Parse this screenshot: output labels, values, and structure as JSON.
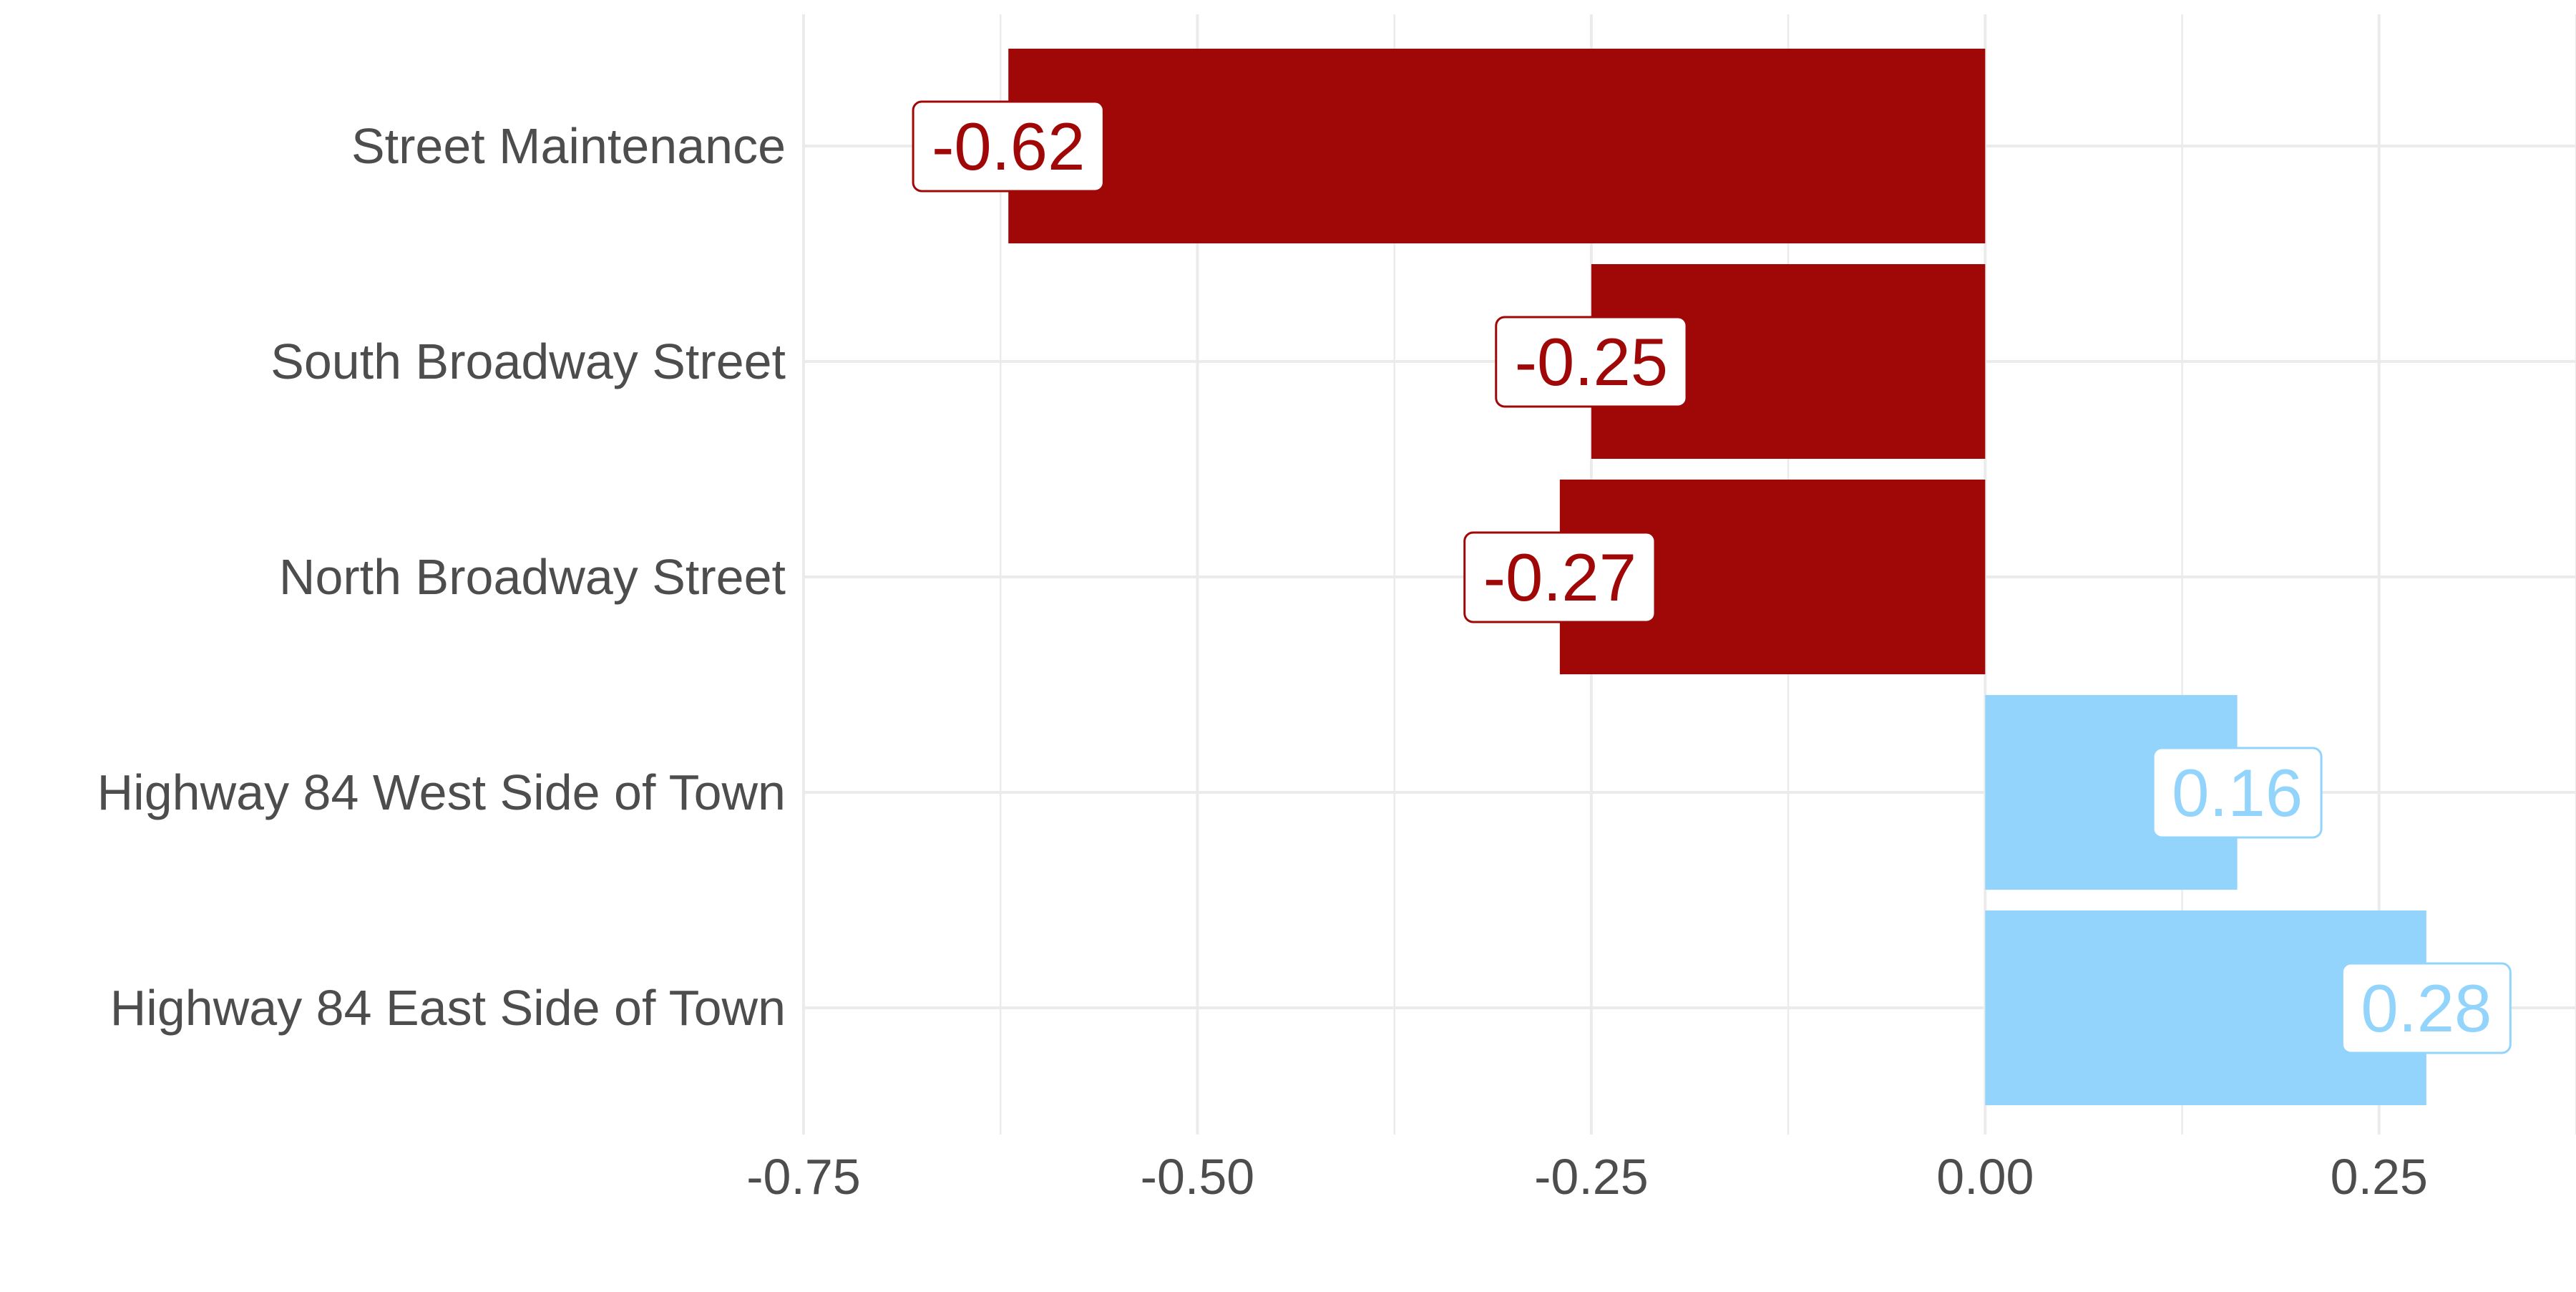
{
  "chart_data": {
    "type": "bar",
    "orientation": "horizontal",
    "categories": [
      "Street Maintenance",
      "South Broadway Street",
      "North Broadway Street",
      "Highway 84 West Side of Town",
      "Highway 84 East Side of Town"
    ],
    "values": [
      -0.62,
      -0.25,
      -0.27,
      0.16,
      0.28
    ],
    "data_labels": [
      "-0.62",
      "-0.25",
      "-0.27",
      "0.16",
      "0.28"
    ],
    "xlim": [
      -0.75,
      0.375
    ],
    "x_ticks": [
      -0.75,
      -0.5,
      -0.25,
      0.0,
      0.25
    ],
    "x_tick_labels": [
      "-0.75",
      "-0.50",
      "-0.25",
      "0.00",
      "0.25"
    ],
    "title": "",
    "xlabel": "",
    "ylabel": "",
    "grid": true,
    "legend": "none",
    "colors": {
      "negative": "#a00808",
      "positive": "#92d4fb",
      "grid": "#ebebeb",
      "text": "#4d4d4d"
    }
  }
}
